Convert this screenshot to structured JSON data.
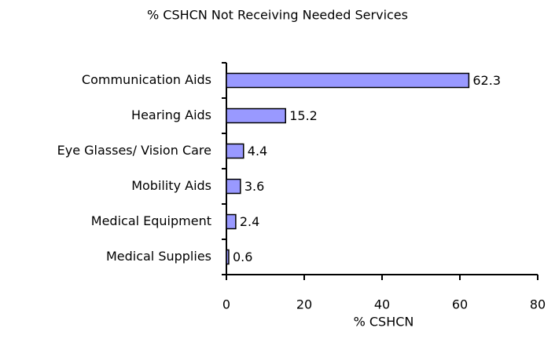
{
  "chart_data": {
    "type": "bar",
    "orientation": "horizontal",
    "title": "% CSHCN Not Receiving Needed Services",
    "x_label": "% CSHCN",
    "categories": [
      "Communication Aids",
      "Hearing Aids",
      "Eye Glasses/ Vision Care",
      "Mobility Aids",
      "Medical Equipment",
      "Medical Supplies"
    ],
    "values": [
      62.3,
      15.2,
      4.4,
      3.6,
      2.4,
      0.6
    ],
    "color": "#9999ff",
    "xlim": [
      0,
      80
    ],
    "xticks": [
      0,
      20,
      40,
      60,
      80
    ],
    "grid": false
  }
}
